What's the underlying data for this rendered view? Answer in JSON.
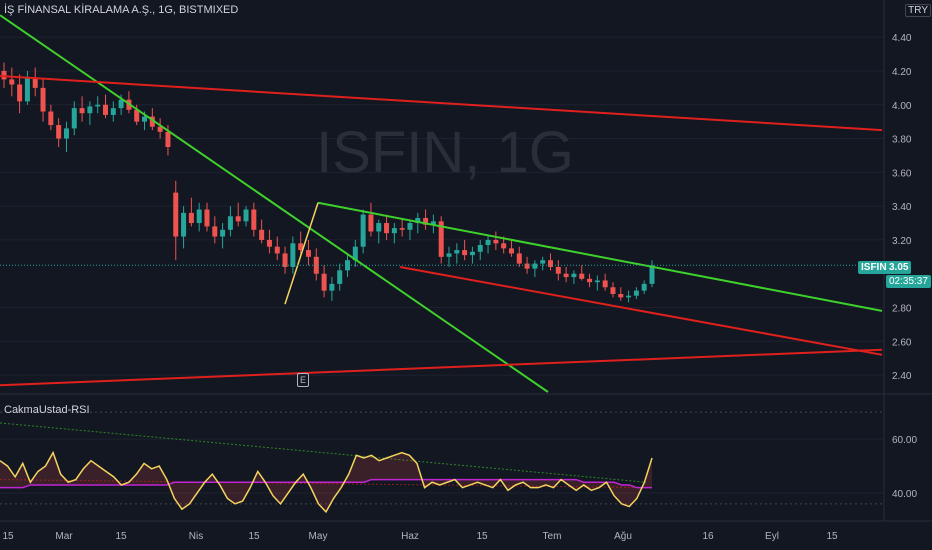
{
  "header": {
    "title": "İŞ FİNANSAL KİRALAMA A.Ş., 1G, BISTMIXED",
    "currency": "TRY"
  },
  "watermark": "ISFIN, 1G",
  "price_tag": {
    "symbol": "ISFIN",
    "value": "3.05",
    "countdown": "02:35:37"
  },
  "event_marker": "E",
  "rsi_title": "CakmaUstad-RSI",
  "colors": {
    "bg": "#131722",
    "up": "#26a69a",
    "down": "#ef5350",
    "green_line": "#3fd12b",
    "red_line": "#e0201d",
    "yellow": "#f4d35e",
    "purple": "#c026d3"
  },
  "chart_data": {
    "type": "candlestick",
    "price_axis": {
      "ticks": [
        "4.40",
        "4.20",
        "4.00",
        "3.80",
        "3.60",
        "3.40",
        "3.20",
        "2.80",
        "2.60",
        "2.40"
      ],
      "range": [
        2.3,
        4.62
      ]
    },
    "rsi_axis": {
      "ticks": [
        "60.00",
        "40.00"
      ],
      "range": [
        30,
        76
      ]
    },
    "time_axis": [
      "15",
      "Mar",
      "15",
      "Nis",
      "15",
      "May",
      "Haz",
      "15",
      "Tem",
      "Ağu",
      "16",
      "Eyl",
      "15"
    ],
    "candles": [
      [
        4.2,
        4.25,
        4.1,
        4.15
      ],
      [
        4.15,
        4.22,
        4.05,
        4.12
      ],
      [
        4.12,
        4.18,
        3.95,
        4.02
      ],
      [
        4.02,
        4.2,
        4.0,
        4.16
      ],
      [
        4.16,
        4.22,
        4.05,
        4.1
      ],
      [
        4.1,
        4.15,
        3.9,
        3.96
      ],
      [
        3.96,
        4.0,
        3.85,
        3.88
      ],
      [
        3.88,
        3.92,
        3.75,
        3.8
      ],
      [
        3.8,
        3.9,
        3.72,
        3.86
      ],
      [
        3.86,
        4.02,
        3.82,
        3.98
      ],
      [
        3.98,
        4.05,
        3.9,
        3.95
      ],
      [
        3.95,
        4.02,
        3.88,
        3.99
      ],
      [
        3.99,
        4.05,
        3.95,
        4.0
      ],
      [
        4.0,
        4.06,
        3.92,
        3.94
      ],
      [
        3.94,
        4.02,
        3.9,
        3.98
      ],
      [
        3.98,
        4.06,
        3.94,
        4.03
      ],
      [
        4.03,
        4.08,
        3.95,
        3.97
      ],
      [
        3.97,
        4.0,
        3.88,
        3.9
      ],
      [
        3.9,
        3.96,
        3.85,
        3.93
      ],
      [
        3.93,
        3.98,
        3.85,
        3.87
      ],
      [
        3.87,
        3.92,
        3.8,
        3.84
      ],
      [
        3.84,
        3.88,
        3.7,
        3.75
      ],
      [
        3.48,
        3.55,
        3.08,
        3.22
      ],
      [
        3.22,
        3.4,
        3.15,
        3.36
      ],
      [
        3.36,
        3.45,
        3.28,
        3.3
      ],
      [
        3.3,
        3.42,
        3.25,
        3.38
      ],
      [
        3.38,
        3.42,
        3.25,
        3.28
      ],
      [
        3.28,
        3.34,
        3.18,
        3.22
      ],
      [
        3.22,
        3.3,
        3.15,
        3.26
      ],
      [
        3.26,
        3.4,
        3.22,
        3.34
      ],
      [
        3.34,
        3.42,
        3.28,
        3.31
      ],
      [
        3.31,
        3.4,
        3.28,
        3.38
      ],
      [
        3.38,
        3.42,
        3.22,
        3.26
      ],
      [
        3.26,
        3.32,
        3.18,
        3.2
      ],
      [
        3.2,
        3.26,
        3.12,
        3.16
      ],
      [
        3.16,
        3.22,
        3.08,
        3.12
      ],
      [
        3.12,
        3.16,
        3.0,
        3.04
      ],
      [
        3.04,
        3.22,
        3.0,
        3.18
      ],
      [
        3.18,
        3.25,
        3.1,
        3.14
      ],
      [
        3.14,
        3.2,
        3.05,
        3.1
      ],
      [
        3.1,
        3.15,
        2.96,
        3.0
      ],
      [
        3.0,
        3.05,
        2.86,
        2.9
      ],
      [
        2.9,
        2.98,
        2.84,
        2.94
      ],
      [
        2.94,
        3.06,
        2.9,
        3.02
      ],
      [
        3.02,
        3.12,
        2.98,
        3.08
      ],
      [
        3.08,
        3.2,
        3.04,
        3.16
      ],
      [
        3.16,
        3.38,
        3.12,
        3.35
      ],
      [
        3.35,
        3.42,
        3.22,
        3.25
      ],
      [
        3.25,
        3.32,
        3.18,
        3.3
      ],
      [
        3.3,
        3.35,
        3.2,
        3.24
      ],
      [
        3.24,
        3.3,
        3.18,
        3.27
      ],
      [
        3.27,
        3.32,
        3.22,
        3.26
      ],
      [
        3.26,
        3.32,
        3.2,
        3.3
      ],
      [
        3.3,
        3.36,
        3.24,
        3.33
      ],
      [
        3.33,
        3.38,
        3.26,
        3.29
      ],
      [
        3.29,
        3.35,
        3.24,
        3.31
      ],
      [
        3.31,
        3.34,
        3.06,
        3.1
      ],
      [
        3.1,
        3.16,
        3.04,
        3.12
      ],
      [
        3.12,
        3.18,
        3.06,
        3.14
      ],
      [
        3.14,
        3.2,
        3.08,
        3.11
      ],
      [
        3.11,
        3.16,
        3.06,
        3.13
      ],
      [
        3.13,
        3.2,
        3.08,
        3.17
      ],
      [
        3.17,
        3.23,
        3.12,
        3.2
      ],
      [
        3.2,
        3.25,
        3.14,
        3.18
      ],
      [
        3.18,
        3.22,
        3.12,
        3.15
      ],
      [
        3.15,
        3.2,
        3.1,
        3.12
      ],
      [
        3.12,
        3.16,
        3.04,
        3.06
      ],
      [
        3.06,
        3.1,
        3.0,
        3.03
      ],
      [
        3.03,
        3.08,
        2.98,
        3.06
      ],
      [
        3.06,
        3.1,
        3.02,
        3.08
      ],
      [
        3.08,
        3.12,
        3.02,
        3.04
      ],
      [
        3.04,
        3.08,
        2.96,
        3.0
      ],
      [
        3.0,
        3.04,
        2.95,
        2.98
      ],
      [
        2.98,
        3.02,
        2.94,
        3.0
      ],
      [
        3.0,
        3.05,
        2.96,
        2.97
      ],
      [
        2.97,
        3.0,
        2.92,
        2.95
      ],
      [
        2.95,
        2.99,
        2.9,
        2.96
      ],
      [
        2.96,
        3.0,
        2.9,
        2.92
      ],
      [
        2.92,
        2.95,
        2.86,
        2.88
      ],
      [
        2.88,
        2.92,
        2.84,
        2.86
      ],
      [
        2.86,
        2.9,
        2.83,
        2.87
      ],
      [
        2.87,
        2.92,
        2.85,
        2.9
      ],
      [
        2.9,
        2.96,
        2.88,
        2.94
      ],
      [
        2.94,
        3.08,
        2.92,
        3.05
      ]
    ],
    "trendlines": [
      {
        "color": "green",
        "from": [
          0,
          4.53
        ],
        "to": [
          548,
          2.3
        ]
      },
      {
        "color": "green",
        "from": [
          318,
          3.42
        ],
        "to": [
          882,
          2.78
        ]
      },
      {
        "color": "red",
        "from": [
          0,
          4.17
        ],
        "to": [
          882,
          3.85
        ]
      },
      {
        "color": "red",
        "from": [
          0,
          2.34
        ],
        "to": [
          882,
          2.55
        ]
      },
      {
        "color": "red",
        "from": [
          400,
          3.04
        ],
        "to": [
          882,
          2.52
        ]
      },
      {
        "color": "yellow",
        "from": [
          285,
          2.82
        ],
        "to": [
          318,
          3.42
        ]
      }
    ],
    "rsi": [
      52,
      50,
      46,
      51,
      44,
      48,
      50,
      55,
      47,
      44,
      45,
      49,
      52,
      50,
      48,
      46,
      43,
      44,
      47,
      51,
      49,
      50,
      45,
      38,
      34,
      36,
      40,
      44,
      47,
      43,
      38,
      36,
      37,
      42,
      48,
      44,
      39,
      36,
      40,
      44,
      47,
      42,
      36,
      33,
      38,
      42,
      47,
      54,
      53,
      54,
      52,
      53,
      54,
      55,
      54,
      51,
      42,
      44,
      43,
      44,
      45,
      42,
      43,
      44,
      43,
      42,
      45,
      41,
      43,
      44,
      42,
      42,
      43,
      42,
      45,
      43,
      41,
      43,
      41,
      42,
      44,
      39,
      36,
      35,
      38,
      44,
      53
    ],
    "rsi_ma": [
      42,
      42,
      42,
      42,
      43,
      43,
      43,
      43,
      43,
      43,
      43,
      43,
      43,
      43,
      43,
      43,
      43,
      43,
      43,
      43,
      43,
      43,
      43,
      44,
      44,
      44,
      44,
      44,
      44,
      44,
      44,
      44,
      44,
      44,
      44,
      44,
      44,
      44,
      44,
      44,
      44,
      44,
      44,
      44,
      44,
      44,
      44,
      44,
      44,
      45,
      45,
      45,
      45,
      45,
      45,
      45,
      45,
      45,
      45,
      45,
      45,
      45,
      45,
      45,
      45,
      45,
      45,
      45,
      45,
      45,
      45,
      45,
      45,
      45,
      45,
      45,
      45,
      44,
      44,
      44,
      44,
      44,
      43,
      43,
      42,
      42,
      42
    ]
  }
}
